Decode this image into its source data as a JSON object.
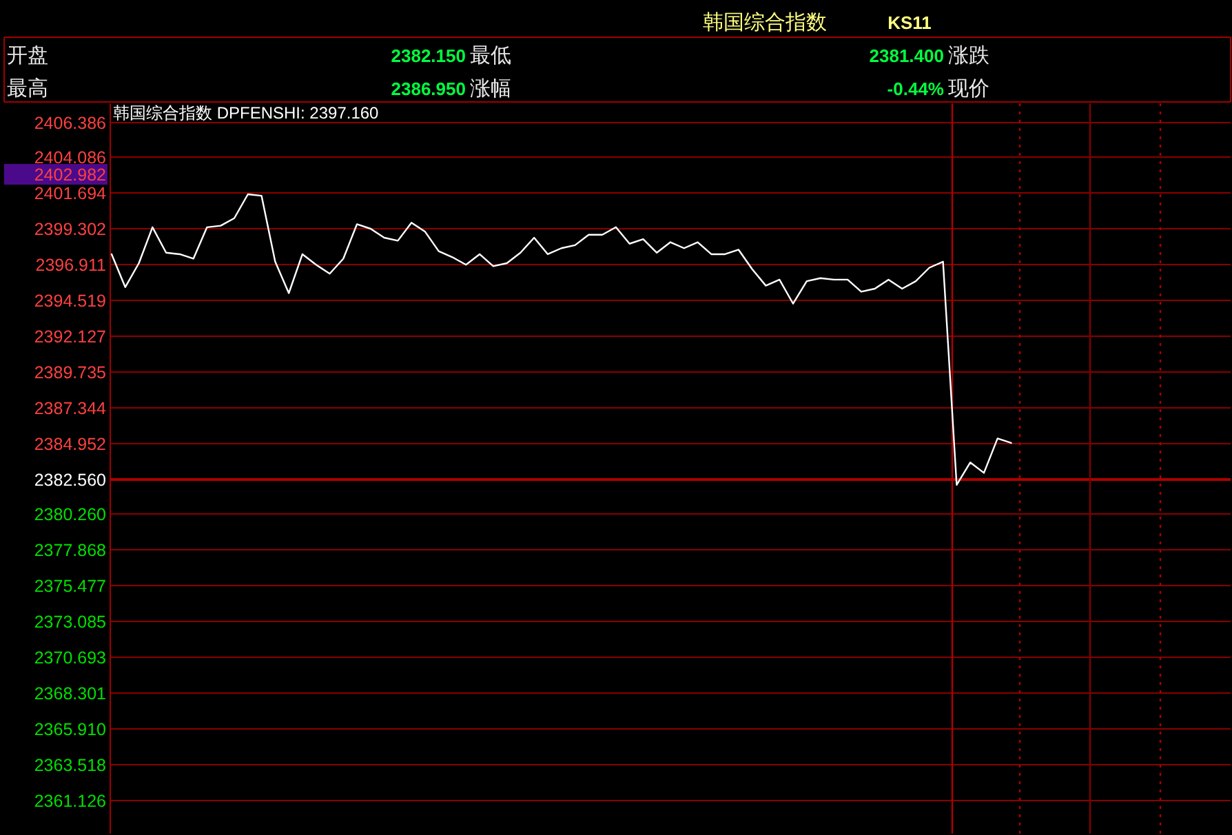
{
  "chart_data": {
    "type": "line",
    "title": "韩国综合指数",
    "subtitle": "KS11",
    "annotations": [
      "开盘",
      "2382.150",
      "最低",
      "2381.400",
      "涨跌",
      "最高",
      "2386.950",
      "涨幅",
      "-0.44%",
      "现价",
      "韩国综合指数 DPFENSHI: 2397.160",
      "2402.982"
    ],
    "categories": [
      null,
      null,
      null,
      null,
      null,
      null,
      null,
      null,
      null,
      null,
      null,
      null,
      null,
      null,
      null,
      null,
      null,
      null,
      null,
      null,
      null,
      null,
      null,
      null,
      null,
      null,
      null,
      null,
      null,
      null,
      null,
      null,
      null,
      null,
      null,
      null,
      null,
      null,
      null,
      null,
      null,
      null,
      null,
      null,
      null,
      null,
      null,
      null,
      null,
      null,
      null,
      null,
      null,
      null,
      null,
      null,
      null,
      null,
      null,
      null,
      null,
      null,
      null,
      null,
      null,
      null,
      null,
      null,
      null,
      null,
      null,
      null,
      null,
      null,
      null,
      null,
      null,
      null,
      null,
      null,
      null,
      null
    ],
    "series": [
      {
        "color": "#ffffff",
        "values": [
          2397.6,
          2395.4,
          2397.0,
          2399.4,
          2397.7,
          2397.6,
          2397.3,
          2399.4,
          2399.5,
          2400.0,
          2401.6,
          2401.5,
          2397.1,
          2395.0,
          2397.6,
          2396.9,
          2396.3,
          2397.3,
          2399.6,
          2399.3,
          2398.7,
          2398.5,
          2399.7,
          2399.1,
          2397.8,
          2397.4,
          2396.9,
          2397.6,
          2396.8,
          2397.0,
          2397.7,
          2398.7,
          2397.6,
          2398.0,
          2398.2,
          2398.9,
          2398.9,
          2399.4,
          2398.3,
          2398.6,
          2397.7,
          2398.4,
          2398.0,
          2398.4,
          2397.6,
          2397.6,
          2397.9,
          2396.6,
          2395.5,
          2395.9,
          2394.3,
          2395.8,
          2396.0,
          2395.9,
          2395.9,
          2395.1,
          2395.3,
          2395.9,
          2395.3,
          2395.8,
          2396.7,
          2397.1,
          2382.2,
          2383.7,
          2383.0,
          2385.3,
          2385.0,
          null,
          null,
          null,
          null,
          null,
          null,
          null,
          null,
          null,
          null,
          null,
          null,
          null,
          null,
          null
        ]
      }
    ],
    "ylim": [
      2358.92,
      2407.67
    ],
    "yticks": [
      2406.386,
      2404.086,
      2401.694,
      2399.302,
      2396.911,
      2394.519,
      2392.127,
      2389.735,
      2387.344,
      2384.952,
      {
        "value": 2382.56,
        "label": "2382.560"
      },
      {
        "value": 2380.26,
        "label": "2380.260"
      },
      2377.868,
      2375.477,
      2373.085,
      2370.693,
      2368.301,
      {
        "value": 2365.91,
        "label": "2365.910"
      },
      2363.518,
      2361.126
    ],
    "grid": "y",
    "ref_lines": [
      {
        "axis": "y",
        "value": 2382.56,
        "color": "#b00000"
      }
    ]
  }
}
